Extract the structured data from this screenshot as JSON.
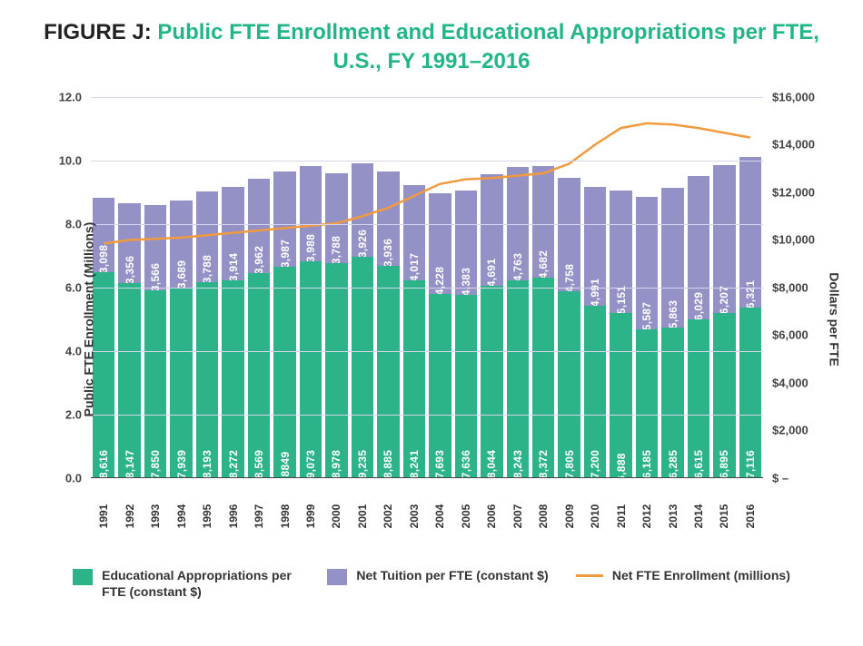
{
  "title_label": "FIGURE J:",
  "title_text": "Public FTE Enrollment and Educational Appropriations per FTE, U.S., FY 1991–2016",
  "chart": {
    "type": "stacked-bar-with-line",
    "colors": {
      "appropriations": "#2cb38a",
      "tuition": "#9391c6",
      "enrollment_line": "#f19a3e",
      "grid": "#d7d5eb",
      "bg": "#ffffff"
    },
    "left_axis": {
      "title": "Public FTE Enrollment (Millions)",
      "min": 0,
      "max": 12,
      "ticks": [
        0.0,
        2.0,
        4.0,
        6.0,
        8.0,
        10.0,
        12.0
      ],
      "tick_labels": [
        "0.0",
        "2.0",
        "4.0",
        "6.0",
        "8.0",
        "10.0",
        "12.0"
      ]
    },
    "right_axis": {
      "title": "Dollars per FTE",
      "min": 0,
      "max": 16000,
      "ticks": [
        0,
        2000,
        4000,
        6000,
        8000,
        10000,
        12000,
        14000,
        16000
      ],
      "tick_labels": [
        "$ –",
        "$2,000",
        "$4,000",
        "$6,000",
        "$8,000",
        "$10,000",
        "$12,000",
        "$14,000",
        "$16,000"
      ]
    },
    "years": [
      "1991",
      "1992",
      "1993",
      "1994",
      "1995",
      "1996",
      "1997",
      "1998",
      "1999",
      "2000",
      "2001",
      "2002",
      "2003",
      "2004",
      "2005",
      "2006",
      "2007",
      "2008",
      "2009",
      "2010",
      "2011",
      "2012",
      "2013",
      "2014",
      "2015",
      "2016"
    ],
    "appropriations": {
      "values": [
        8616,
        8147,
        7850,
        7939,
        8193,
        8272,
        8569,
        8849,
        9073,
        8978,
        9235,
        8885,
        8241,
        7693,
        7636,
        8044,
        8243,
        8372,
        7805,
        7200,
        6888,
        6185,
        6285,
        6615,
        6895,
        7116
      ],
      "labels": [
        "$8,616",
        "$8,147",
        "$7,850",
        "$7,939",
        "$8,193",
        "$8,272",
        "$8,569",
        "$8849",
        "$9,073",
        "$8,978",
        "$9,235",
        "$8,885",
        "$8,241",
        "$7,693",
        "$7,636",
        "$8,044",
        "$8,243",
        "$8,372",
        "$7,805",
        "$7,200",
        "6,888",
        "$6,185",
        "$6,285",
        "$6,615",
        "$6,895",
        "$7,116"
      ]
    },
    "tuition": {
      "values": [
        3098,
        3356,
        3566,
        3689,
        3788,
        3914,
        3962,
        3987,
        3988,
        3788,
        3926,
        3936,
        4017,
        4228,
        4383,
        4691,
        4763,
        4682,
        4758,
        4991,
        5151,
        5587,
        5863,
        6029,
        6207,
        6321
      ],
      "labels": [
        "$3,098",
        "$3,356",
        "$3,566",
        "$3,689",
        "$3,788",
        "$3,914",
        "$3,962",
        "$3,987",
        "$3,988",
        "$3,788",
        "$3,926",
        "$3,936",
        "$4,017",
        "$4,228",
        "$4,383",
        "$4,691",
        "$4,763",
        "$4,682",
        "$4,758",
        "$4,991",
        "$5,151",
        "$5,587",
        "$5,863",
        "$6,029",
        "$6,207",
        "$6,321"
      ]
    },
    "enrollment_line": {
      "values": [
        9.85,
        10.0,
        10.05,
        10.1,
        10.2,
        10.3,
        10.4,
        10.5,
        10.6,
        10.7,
        11.0,
        11.35,
        11.85,
        12.35,
        12.55,
        12.6,
        12.7,
        12.8,
        13.2,
        14.0,
        14.7,
        14.9,
        14.85,
        14.7,
        14.5,
        14.3
      ],
      "unit": "millions"
    },
    "legend": [
      {
        "key": "appropriations",
        "label": "Educational Appropriations per FTE (constant $)",
        "type": "swatch"
      },
      {
        "key": "tuition",
        "label": "Net Tuition per FTE (constant $)",
        "type": "swatch"
      },
      {
        "key": "enrollment_line",
        "label": "Net FTE Enrollment (millions)",
        "type": "line"
      }
    ]
  }
}
